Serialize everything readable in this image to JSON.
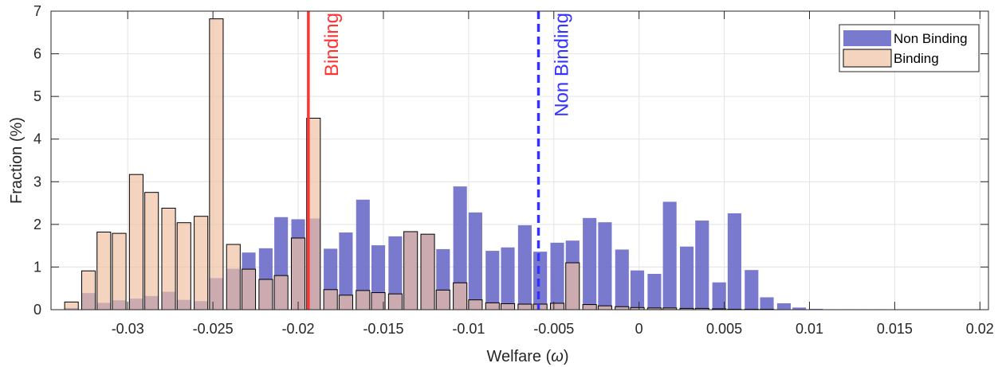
{
  "chart_data": {
    "type": "bar",
    "xlabel_main": "Welfare (",
    "xlabel_symbol": "ω",
    "xlabel_close": ")",
    "ylabel": "Fraction (%)",
    "xlim": [
      -0.0345,
      0.0205
    ],
    "ylim": [
      0,
      7
    ],
    "xticks": [
      -0.03,
      -0.025,
      -0.02,
      -0.015,
      -0.01,
      -0.005,
      0,
      0.005,
      0.01,
      0.015,
      0.02
    ],
    "xtick_labels": [
      "-0.03",
      "-0.025",
      "-0.02",
      "-0.015",
      "-0.01",
      "-0.005",
      "0",
      "0.005",
      "0.01",
      "0.015",
      "0.02"
    ],
    "yticks": [
      0,
      1,
      2,
      3,
      4,
      5,
      6,
      7
    ],
    "ytick_labels": [
      "0",
      "1",
      "2",
      "3",
      "4",
      "5",
      "6",
      "7"
    ],
    "grid": true,
    "legend_position": "top-right",
    "bin_width": 0.0008,
    "x": [
      -0.0333,
      -0.0323,
      -0.0314,
      -0.0305,
      -0.0295,
      -0.0286,
      -0.0276,
      -0.0267,
      -0.0257,
      -0.0248,
      -0.0238,
      -0.0229,
      -0.0219,
      -0.021,
      -0.02,
      -0.0191,
      -0.0181,
      -0.0172,
      -0.0162,
      -0.0153,
      -0.0143,
      -0.0134,
      -0.0124,
      -0.0115,
      -0.0105,
      -0.0096,
      -0.0086,
      -0.0077,
      -0.0067,
      -0.0058,
      -0.0048,
      -0.0039,
      -0.0029,
      -0.002,
      -0.001,
      -0.0001,
      0.0009,
      0.0018,
      0.0028,
      0.0037,
      0.0047,
      0.0056,
      0.0066,
      0.0075,
      0.0085,
      0.0094,
      0.0104,
      0.0113,
      0.0123,
      0.0132,
      0.0142,
      0.0151,
      0.0161,
      0.017,
      0.018,
      0.0189,
      0.0199
    ],
    "series": [
      {
        "name": "Non Binding",
        "color": "#6a6ac8",
        "values": [
          0.04,
          0.39,
          0.16,
          0.22,
          0.26,
          0.32,
          0.42,
          0.23,
          0.2,
          0.74,
          0.96,
          1.34,
          1.44,
          2.17,
          2.12,
          2.14,
          1.43,
          1.81,
          2.58,
          1.51,
          1.72,
          1.83,
          1.77,
          1.42,
          2.89,
          2.28,
          1.38,
          1.46,
          1.98,
          1.36,
          1.57,
          1.62,
          2.15,
          2.05,
          1.41,
          0.92,
          0.84,
          2.53,
          1.48,
          2.09,
          0.64,
          2.26,
          0.93,
          0.29,
          0.15,
          0.05,
          0.02,
          0.01,
          0.01,
          0.01,
          0.01,
          0.0,
          0.0,
          0.0,
          0.0,
          0.0,
          0.0
        ]
      },
      {
        "name": "Binding",
        "color": "#f0c0a4",
        "values": [
          0.18,
          0.91,
          1.82,
          1.79,
          3.17,
          2.75,
          2.38,
          2.04,
          2.19,
          6.82,
          1.53,
          0.95,
          0.71,
          0.8,
          1.68,
          4.49,
          0.47,
          0.34,
          0.45,
          0.4,
          0.37,
          1.83,
          1.77,
          0.46,
          0.63,
          0.23,
          0.16,
          0.14,
          0.13,
          0.13,
          0.15,
          1.1,
          0.12,
          0.09,
          0.07,
          0.05,
          0.04,
          0.04,
          0.03,
          0.03,
          0.02,
          0.01,
          0.01,
          0.01,
          0.0,
          0.0,
          0.0,
          0.0,
          0.0,
          0.0,
          0.0,
          0.0,
          0.0,
          0.0,
          0.0,
          0.0,
          0.0
        ]
      }
    ],
    "reference_lines": [
      {
        "label": "Binding",
        "x": -0.0194,
        "color": "#ff3333",
        "style": "solid"
      },
      {
        "label": "Non Binding",
        "x": -0.0059,
        "color": "#3333ff",
        "style": "dashed"
      }
    ]
  }
}
